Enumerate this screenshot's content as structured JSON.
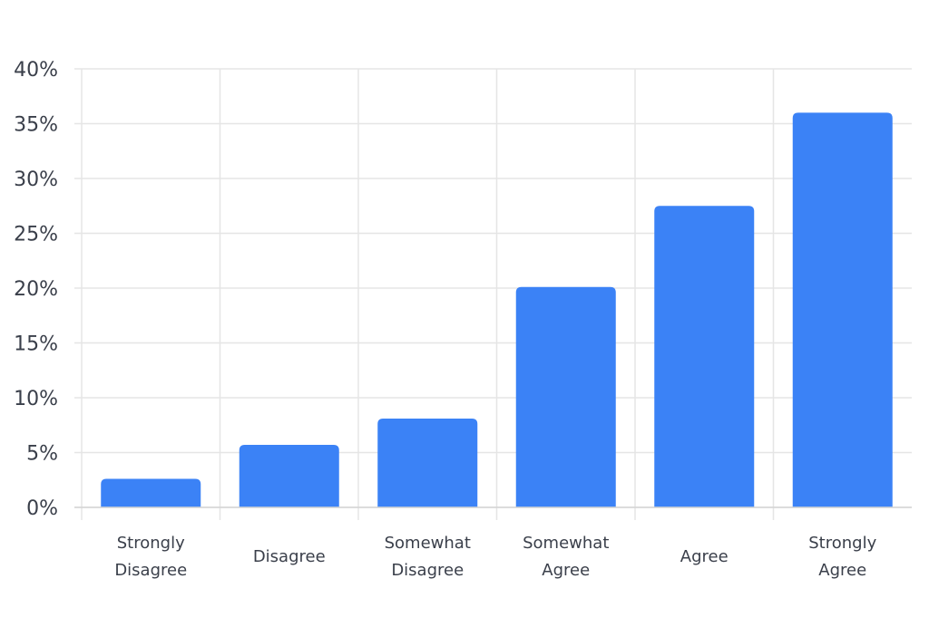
{
  "chart_data": {
    "type": "bar",
    "title": "",
    "xlabel": "",
    "ylabel": "",
    "categories": [
      [
        "Strongly",
        "Disagree"
      ],
      [
        "Disagree"
      ],
      [
        "Somewhat",
        "Disagree"
      ],
      [
        "Somewhat",
        "Agree"
      ],
      [
        "Agree"
      ],
      [
        "Strongly",
        "Agree"
      ]
    ],
    "values": [
      2.6,
      5.7,
      8.1,
      20.1,
      27.5,
      36.0
    ],
    "ylim": [
      0,
      40
    ],
    "yticks": [
      0,
      5,
      10,
      15,
      20,
      25,
      30,
      35,
      40
    ],
    "ytick_labels": [
      "0%",
      "5%",
      "10%",
      "15%",
      "20%",
      "25%",
      "30%",
      "35%",
      "40%"
    ],
    "grid": true,
    "legend": "none",
    "bar_color": "#3b82f6",
    "grid_color": "#e5e5e5"
  }
}
